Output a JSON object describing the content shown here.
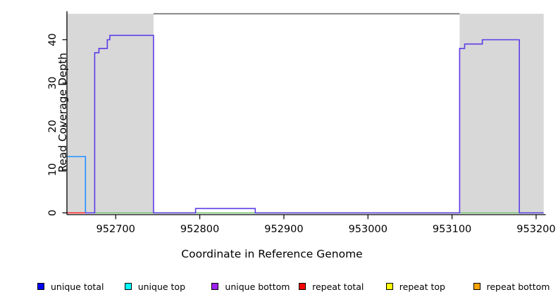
{
  "chart_data": {
    "type": "line",
    "title": "",
    "xlabel": "Coordinate in Reference Genome",
    "ylabel": "Read Coverage Depth",
    "xlim": [
      952642,
      953209
    ],
    "ylim": [
      0,
      46.5
    ],
    "grid": false,
    "x_ticks": [
      952700,
      952800,
      952900,
      953000,
      953100,
      953200
    ],
    "y_ticks": [
      0,
      10,
      20,
      30,
      40
    ],
    "shaded_regions": [
      {
        "name": "shaded-region-left",
        "x0": 952642,
        "x1": 952745,
        "color": "#d8d8d8"
      },
      {
        "name": "shaded-region-right",
        "x0": 953109,
        "x1": 953209,
        "color": "#d8d8d8"
      }
    ],
    "span_line": {
      "x0": 952745,
      "x1": 953109,
      "y": 46,
      "color": "#6b6b6b"
    },
    "series": [
      {
        "name": "repeat total",
        "color": "#ff2222",
        "points": [
          [
            952642,
            0
          ],
          [
            952664,
            0
          ]
        ]
      },
      {
        "name": "green baseline",
        "color": "#6dc06d",
        "points": [
          [
            952675,
            0
          ],
          [
            953209,
            0
          ]
        ]
      },
      {
        "name": "unique top",
        "color": "#1e90ff",
        "points": [
          [
            952642,
            13
          ],
          [
            952664,
            13
          ],
          [
            952664,
            0
          ]
        ]
      },
      {
        "name": "unique bottom",
        "color": "#5d3be8",
        "points": [
          [
            952664,
            0
          ],
          [
            952675,
            0
          ],
          [
            952675,
            37
          ],
          [
            952680,
            37
          ],
          [
            952680,
            38
          ],
          [
            952690,
            38
          ],
          [
            952690,
            40
          ],
          [
            952693,
            40
          ],
          [
            952693,
            41
          ],
          [
            952745,
            41
          ],
          [
            952745,
            0
          ],
          [
            952795,
            0
          ],
          [
            952795,
            1
          ],
          [
            952866,
            1
          ],
          [
            952866,
            0
          ],
          [
            953109,
            0
          ],
          [
            953109,
            38
          ],
          [
            953115,
            38
          ],
          [
            953115,
            39
          ],
          [
            953136,
            39
          ],
          [
            953136,
            40
          ],
          [
            953180,
            40
          ],
          [
            953180,
            0
          ],
          [
            953209,
            0
          ]
        ]
      }
    ]
  },
  "legend": {
    "items": [
      {
        "label": "unique total",
        "color": "#0000ff"
      },
      {
        "label": "unique top",
        "color": "#00ffff"
      },
      {
        "label": "unique bottom",
        "color": "#a020f0"
      },
      {
        "label": "repeat total",
        "color": "#ff0000"
      },
      {
        "label": "repeat top",
        "color": "#ffff00"
      },
      {
        "label": "repeat bottom",
        "color": "#ffa500"
      }
    ]
  }
}
